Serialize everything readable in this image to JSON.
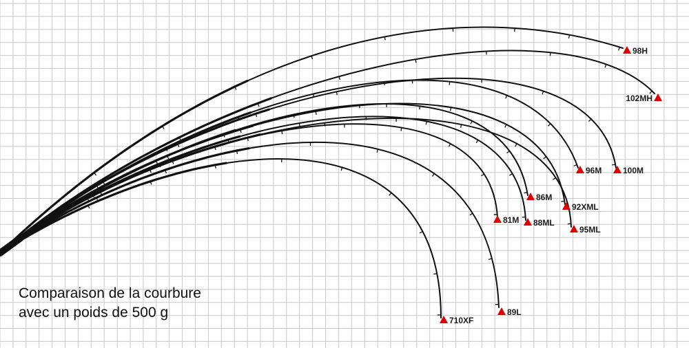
{
  "caption": {
    "line1": "Comparaison de la courbure",
    "line2": "avec un poids de 500 g"
  },
  "colors": {
    "grid": "#c8c8c8",
    "rod": "#111111",
    "marker": "#e00000",
    "label": "#1a1a1a"
  },
  "rods": [
    {
      "label": "98H"
    },
    {
      "label": "102MH"
    },
    {
      "label": "96M"
    },
    {
      "label": "100M"
    },
    {
      "label": "86M"
    },
    {
      "label": "92XML"
    },
    {
      "label": "81M"
    },
    {
      "label": "88ML"
    },
    {
      "label": "95ML"
    },
    {
      "label": "89L"
    },
    {
      "label": "710XF"
    }
  ]
}
